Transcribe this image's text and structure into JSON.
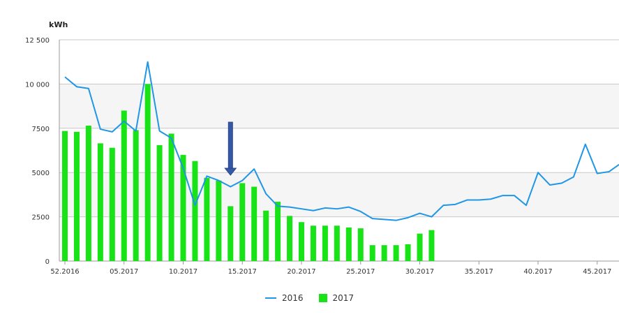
{
  "chart_data": {
    "type": "bar",
    "ylabel": "kWh",
    "ylim": [
      0,
      12500
    ],
    "y_ticks": [
      "0",
      "2500",
      "5000",
      "7500",
      "10 000",
      "12 500"
    ],
    "y_tick_values": [
      0,
      2500,
      5000,
      7500,
      10000,
      12500
    ],
    "x_tick_labels": [
      "52.2016",
      "05.2017",
      "10.2017",
      "15.2017",
      "20.2017",
      "25.2017",
      "30.2017",
      "35.2017",
      "40.2017",
      "45.2017"
    ],
    "weeks": [
      "52",
      "1",
      "2",
      "3",
      "4",
      "5",
      "6",
      "7",
      "8",
      "9",
      "10",
      "11",
      "12",
      "13",
      "14",
      "15",
      "16",
      "17",
      "18",
      "19",
      "20",
      "21",
      "22",
      "23",
      "24",
      "25",
      "26",
      "27",
      "28",
      "29",
      "30",
      "31",
      "32",
      "33",
      "34",
      "35",
      "36",
      "37",
      "38",
      "39",
      "40",
      "41",
      "42",
      "43",
      "44",
      "45",
      "46",
      "47"
    ],
    "series": [
      {
        "name": "2016",
        "type": "line",
        "color": "#1f96e6",
        "values": [
          10400,
          9850,
          9750,
          7450,
          7300,
          7900,
          7350,
          11250,
          7350,
          6950,
          5250,
          3150,
          4800,
          4550,
          4200,
          4550,
          5200,
          3800,
          3100,
          3050,
          2950,
          2850,
          3000,
          2950,
          3050,
          2800,
          2400,
          2350,
          2300,
          2450,
          2700,
          2500,
          3150,
          3200,
          3450,
          3450,
          3500,
          3700,
          3700,
          3150,
          5000,
          4300,
          4400,
          4750,
          6600,
          4950,
          5050,
          5450
        ]
      },
      {
        "name": "2017",
        "type": "bar",
        "color": "#17e317",
        "values": [
          7350,
          7300,
          7650,
          6650,
          6400,
          8500,
          7400,
          10000,
          6550,
          7200,
          6000,
          5650,
          4700,
          4550,
          3100,
          4400,
          4200,
          2850,
          3350,
          2550,
          2200,
          2000,
          2000,
          2000,
          1900,
          1850,
          900,
          900,
          900,
          950,
          1550,
          1750
        ]
      }
    ],
    "grid": true,
    "legend_position": "bottom-center",
    "annotations": [
      {
        "type": "arrow-down",
        "week": "15",
        "color": "#3558a8"
      }
    ]
  },
  "legend": {
    "items": [
      {
        "label": "2016",
        "color": "#1f96e6",
        "shape": "line"
      },
      {
        "label": "2017",
        "color": "#17e317",
        "shape": "box"
      }
    ]
  }
}
